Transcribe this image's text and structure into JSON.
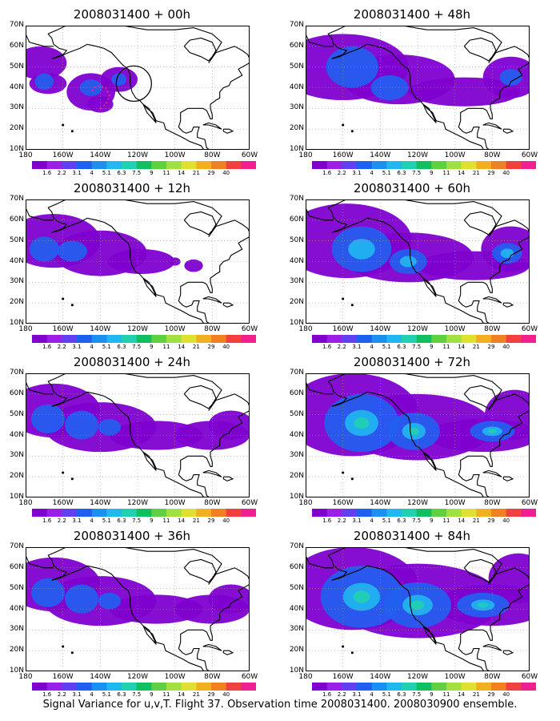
{
  "caption": "Signal Variance for u,v,T. Flight 37. Observation time 2008031400. 2008030900 ensemble.",
  "lat_labels": [
    "70N",
    "60N",
    "50N",
    "40N",
    "30N",
    "20N",
    "10N"
  ],
  "lon_labels": [
    "180",
    "160W",
    "140W",
    "120W",
    "100W",
    "80W",
    "60W"
  ],
  "colorbar": {
    "colors": [
      "#8000d0",
      "#9a20e8",
      "#6040f0",
      "#2060f0",
      "#1a90f0",
      "#20b8f0",
      "#20d0b0",
      "#10c060",
      "#60d040",
      "#a0e040",
      "#e0e030",
      "#f0b020",
      "#f08020",
      "#f04040",
      "#f02090"
    ],
    "ticks": [
      "1.6",
      "2.2",
      "3.1",
      "4",
      "5.1",
      "6.3",
      "7.5",
      "9",
      "11",
      "14",
      "21",
      "29",
      "40"
    ]
  },
  "panels": [
    {
      "title": "2008031400 + 00h",
      "level": 0
    },
    {
      "title": "2008031400 + 48h",
      "level": 3
    },
    {
      "title": "2008031400 + 12h",
      "level": 1
    },
    {
      "title": "2008031400 + 60h",
      "level": 4
    },
    {
      "title": "2008031400 + 24h",
      "level": 2
    },
    {
      "title": "2008031400 + 72h",
      "level": 5
    },
    {
      "title": "2008031400 + 36h",
      "level": 2
    },
    {
      "title": "2008031400 + 84h",
      "level": 6
    }
  ]
}
